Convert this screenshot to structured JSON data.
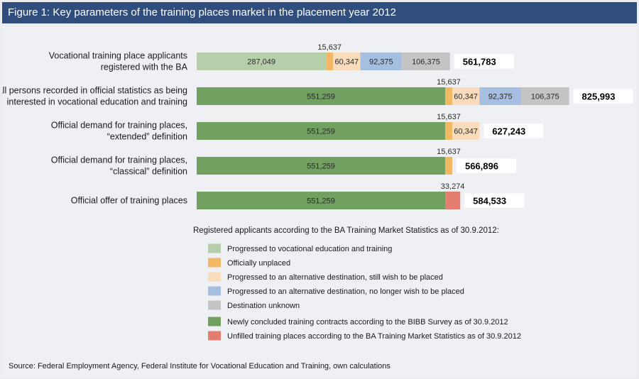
{
  "title": "Figure 1: Key parameters of the training places market in the placement year 2012",
  "source": "Source: Federal Employment Agency, Federal Institute for Vocational Education and Training, own calculations",
  "legend_heading": "Registered applicants according to the BA Training Market Statistics as of 30.9.2012:",
  "colors": {
    "progressed": "#b7ceaa",
    "unplaced": "#f2b866",
    "alt_still": "#f8dcbb",
    "alt_no_longer": "#a6bedf",
    "unknown": "#c4c4c4",
    "contracts": "#71a060",
    "unfilled": "#e47c70"
  },
  "chart_data": {
    "type": "bar",
    "orientation": "horizontal",
    "stacked": true,
    "categories": [
      [
        "Vocational training place applicants",
        "registered with the BA"
      ],
      [
        "All persons recorded in official statistics as being",
        "interested in vocational education and training"
      ],
      [
        "Official demand for training places,",
        "“extended” definition"
      ],
      [
        "Official demand for training places,",
        "“classical” definition"
      ],
      [
        "Official offer of training places"
      ]
    ],
    "rows": [
      {
        "total": "561,783",
        "segments": [
          {
            "key": "progressed",
            "value": 287049,
            "label": "287,049",
            "pos": "inside"
          },
          {
            "key": "unplaced",
            "value": 15637,
            "label": "15,637",
            "pos": "above"
          },
          {
            "key": "alt_still",
            "value": 60347,
            "label": "60,347",
            "pos": "inside"
          },
          {
            "key": "alt_no_longer",
            "value": 92375,
            "label": "92,375",
            "pos": "inside"
          },
          {
            "key": "unknown",
            "value": 106375,
            "label": "106,375",
            "pos": "inside"
          }
        ]
      },
      {
        "total": "825,993",
        "segments": [
          {
            "key": "contracts",
            "value": 551259,
            "label": "551,259",
            "pos": "inside"
          },
          {
            "key": "unplaced",
            "value": 15637,
            "label": "15,637",
            "pos": "above"
          },
          {
            "key": "alt_still",
            "value": 60347,
            "label": "60,347",
            "pos": "inside"
          },
          {
            "key": "alt_no_longer",
            "value": 92375,
            "label": "92,375",
            "pos": "inside"
          },
          {
            "key": "unknown",
            "value": 106375,
            "label": "106,375",
            "pos": "inside"
          }
        ]
      },
      {
        "total": "627,243",
        "segments": [
          {
            "key": "contracts",
            "value": 551259,
            "label": "551,259",
            "pos": "inside"
          },
          {
            "key": "unplaced",
            "value": 15637,
            "label": "15,637",
            "pos": "above"
          },
          {
            "key": "alt_still",
            "value": 60347,
            "label": "60,347",
            "pos": "inside"
          }
        ]
      },
      {
        "total": "566,896",
        "segments": [
          {
            "key": "contracts",
            "value": 551259,
            "label": "551,259",
            "pos": "inside"
          },
          {
            "key": "unplaced",
            "value": 15637,
            "label": "15,637",
            "pos": "above"
          }
        ]
      },
      {
        "total": "584,533",
        "segments": [
          {
            "key": "contracts",
            "value": 551259,
            "label": "551,259",
            "pos": "inside"
          },
          {
            "key": "unfilled",
            "value": 33274,
            "label": "33,274",
            "pos": "above"
          }
        ]
      }
    ],
    "legend": [
      {
        "key": "progressed",
        "label": "Progressed to vocational education and training",
        "group": "applicants"
      },
      {
        "key": "unplaced",
        "label": "Officially unplaced",
        "group": "applicants"
      },
      {
        "key": "alt_still",
        "label": "Progressed to an alternative destination, still wish to be placed",
        "group": "applicants"
      },
      {
        "key": "alt_no_longer",
        "label": "Progressed to an alternative destination, no longer wish to be placed",
        "group": "applicants"
      },
      {
        "key": "unknown",
        "label": "Destination unknown",
        "group": "applicants"
      },
      {
        "key": "contracts",
        "label": "Newly concluded training contracts according to the BIBB Survey as of 30.9.2012",
        "group": "other"
      },
      {
        "key": "unfilled",
        "label": "Unfilled training places according to the BA Training Market Statistics as of 30.9.2012",
        "group": "other"
      }
    ]
  }
}
